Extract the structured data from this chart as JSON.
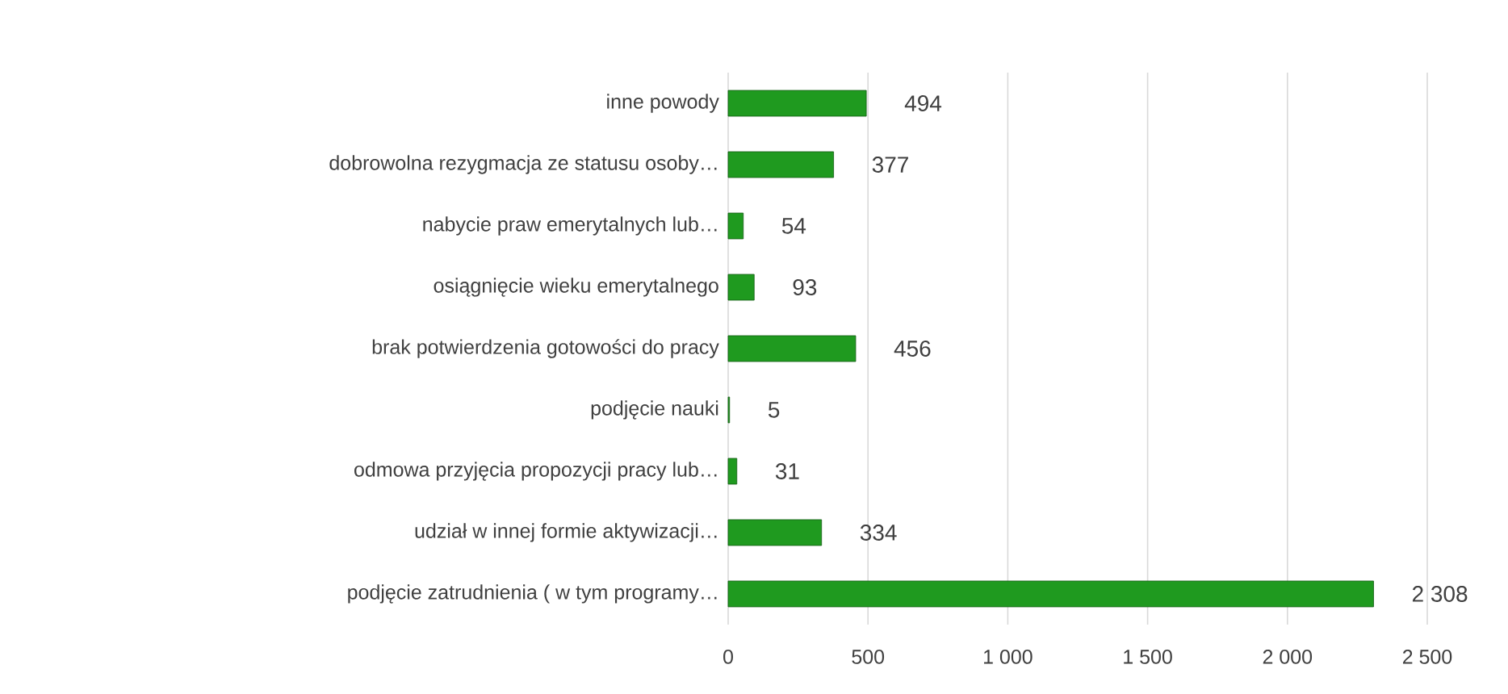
{
  "chart_data": {
    "type": "bar",
    "orientation": "horizontal",
    "categories": [
      "inne powody",
      "dobrowolna rezygmacja ze statusu osoby…",
      "nabycie praw emerytalnych lub…",
      "osiągnięcie wieku emerytalnego",
      "brak potwierdzenia gotowości do pracy",
      "podjęcie nauki",
      "odmowa przyjęcia propozycji pracy lub…",
      "udział w innej formie aktywizacji…",
      "podjęcie zatrudnienia ( w tym programy…"
    ],
    "values": [
      494,
      377,
      54,
      93,
      456,
      5,
      31,
      334,
      2308
    ],
    "value_labels": [
      "494",
      "377",
      "54",
      "93",
      "456",
      "5",
      "31",
      "334",
      "2 308"
    ],
    "color": "#1f9a1f",
    "xlim": [
      0,
      2500
    ],
    "xticks": [
      0,
      500,
      {
        "value": 1000,
        "label": "1 000"
      },
      {
        "value": 1500,
        "label": "1 500"
      },
      {
        "value": 2000,
        "label": "2 000"
      },
      {
        "value": 2500,
        "label": "2 500"
      }
    ],
    "grid": "x"
  }
}
